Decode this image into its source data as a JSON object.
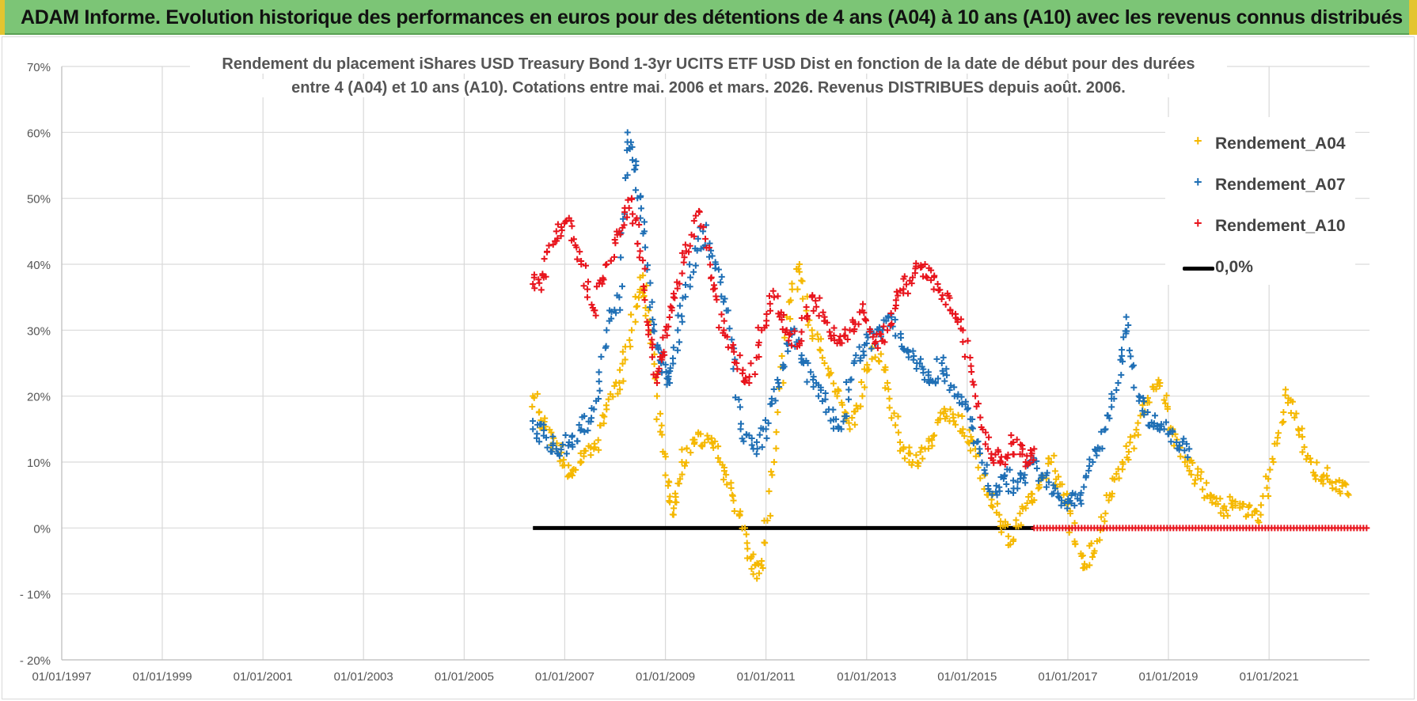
{
  "header": {
    "title": "ADAM Informe. Evolution historique des performances en euros pour des détentions de 4 ans (A04) à 10 ans (A10) avec les revenus connus distribués"
  },
  "chart_data": {
    "type": "scatter",
    "title_line1": "Rendement du placement iShares USD Treasury Bond 1-3yr UCITS ETF USD Dist en fonction de la date de début pour des durées",
    "title_line2": "entre 4 (A04) et 10 ans (A10). Cotations entre mai. 2006 et mars. 2026. Revenus DISTRIBUES depuis août. 2006.",
    "xlabel": "",
    "ylabel": "",
    "xlim": [
      "1997-01-01",
      "2022-12-31"
    ],
    "ylim": [
      -0.2,
      0.7
    ],
    "x_ticks": [
      "01/01/1997",
      "01/01/1999",
      "01/01/2001",
      "01/01/2003",
      "01/01/2005",
      "01/01/2007",
      "01/01/2009",
      "01/01/2011",
      "01/01/2013",
      "01/01/2015",
      "01/01/2017",
      "01/01/2019",
      "01/01/2021"
    ],
    "y_ticks": [
      "- 20%",
      "- 10%",
      "0%",
      "10%",
      "20%",
      "30%",
      "40%",
      "50%",
      "60%",
      "70%"
    ],
    "y_tick_values": [
      -0.2,
      -0.1,
      0,
      0.1,
      0.2,
      0.3,
      0.4,
      0.5,
      0.6,
      0.7
    ],
    "grid": true,
    "legend_position": "top-right",
    "series": [
      {
        "name": "Rendement_A04",
        "color": "#f5b800",
        "marker": "+",
        "x": [
          "2006-05-15",
          "2006-08-01",
          "2006-11-01",
          "2007-02-01",
          "2007-05-01",
          "2007-08-01",
          "2007-11-01",
          "2008-02-01",
          "2008-05-01",
          "2008-07-01",
          "2008-09-01",
          "2008-11-01",
          "2009-01-01",
          "2009-03-01",
          "2009-05-01",
          "2009-08-01",
          "2009-11-01",
          "2010-02-01",
          "2010-05-01",
          "2010-08-01",
          "2010-10-01",
          "2010-12-01",
          "2011-03-01",
          "2011-06-01",
          "2011-09-01",
          "2011-12-01",
          "2012-03-01",
          "2012-06-01",
          "2012-09-01",
          "2012-12-01",
          "2013-03-01",
          "2013-06-01",
          "2013-09-01",
          "2013-12-01",
          "2014-03-01",
          "2014-06-01",
          "2014-09-01",
          "2014-12-01",
          "2015-03-01",
          "2015-06-01",
          "2015-09-01",
          "2015-12-01",
          "2016-03-01",
          "2016-06-01",
          "2016-09-01",
          "2016-12-01",
          "2017-02-01",
          "2017-05-01",
          "2017-08-01",
          "2017-11-01",
          "2018-02-01",
          "2018-05-01",
          "2018-08-01",
          "2018-11-01",
          "2019-02-01",
          "2019-05-01",
          "2019-08-01",
          "2019-11-01",
          "2020-02-01",
          "2020-05-01",
          "2020-08-01",
          "2020-11-01",
          "2021-02-01",
          "2021-05-01",
          "2021-08-01",
          "2021-11-01",
          "2022-02-01",
          "2022-05-01",
          "2022-08-01"
        ],
        "y": [
          0.2,
          0.15,
          0.12,
          0.08,
          0.1,
          0.12,
          0.18,
          0.22,
          0.3,
          0.38,
          0.33,
          0.2,
          0.08,
          0.02,
          0.1,
          0.13,
          0.14,
          0.1,
          0.05,
          0.0,
          -0.07,
          -0.05,
          0.1,
          0.32,
          0.4,
          0.3,
          0.25,
          0.2,
          0.15,
          0.2,
          0.28,
          0.22,
          0.13,
          0.1,
          0.12,
          0.16,
          0.18,
          0.15,
          0.12,
          0.05,
          0.01,
          -0.02,
          0.03,
          0.06,
          0.1,
          0.05,
          0.0,
          -0.06,
          -0.02,
          0.05,
          0.1,
          0.14,
          0.19,
          0.22,
          0.15,
          0.1,
          0.08,
          0.05,
          0.03,
          0.04,
          0.02,
          0.02,
          0.1,
          0.21,
          0.15,
          0.1,
          0.08,
          0.07,
          0.05
        ]
      },
      {
        "name": "Rendement_A07",
        "color": "#1f6fb5",
        "marker": "+",
        "x": [
          "2006-05-15",
          "2006-08-01",
          "2006-11-01",
          "2007-02-01",
          "2007-05-01",
          "2007-08-01",
          "2007-11-01",
          "2008-02-01",
          "2008-04-01",
          "2008-06-01",
          "2008-08-01",
          "2008-10-01",
          "2008-12-01",
          "2009-02-01",
          "2009-04-01",
          "2009-07-01",
          "2009-10-01",
          "2010-01-01",
          "2010-04-01",
          "2010-07-01",
          "2010-10-01",
          "2011-01-01",
          "2011-04-01",
          "2011-07-01",
          "2011-10-01",
          "2012-01-01",
          "2012-04-01",
          "2012-07-01",
          "2012-10-01",
          "2013-01-01",
          "2013-04-01",
          "2013-07-01",
          "2013-10-01",
          "2014-01-01",
          "2014-04-01",
          "2014-07-01",
          "2014-10-01",
          "2015-01-01",
          "2015-04-01",
          "2015-07-01",
          "2015-10-01",
          "2016-01-01",
          "2016-04-01",
          "2016-07-01",
          "2016-10-01",
          "2017-01-01",
          "2017-04-01",
          "2017-07-01",
          "2017-10-01",
          "2018-01-01",
          "2018-03-01",
          "2018-06-01",
          "2018-09-01",
          "2018-12-01",
          "2019-03-01",
          "2019-06-01"
        ],
        "y": [
          0.15,
          0.14,
          0.12,
          0.13,
          0.15,
          0.18,
          0.3,
          0.35,
          0.6,
          0.55,
          0.45,
          0.3,
          0.25,
          0.22,
          0.3,
          0.38,
          0.45,
          0.4,
          0.33,
          0.15,
          0.12,
          0.15,
          0.22,
          0.3,
          0.25,
          0.22,
          0.18,
          0.15,
          0.25,
          0.28,
          0.3,
          0.32,
          0.27,
          0.25,
          0.22,
          0.25,
          0.2,
          0.18,
          0.12,
          0.05,
          0.08,
          0.06,
          0.1,
          0.08,
          0.06,
          0.04,
          0.05,
          0.1,
          0.15,
          0.22,
          0.32,
          0.2,
          0.16,
          0.15,
          0.13,
          0.12
        ]
      },
      {
        "name": "Rendement_A10",
        "color": "#e8141c",
        "marker": "+",
        "x": [
          "2006-05-15",
          "2006-08-01",
          "2006-11-01",
          "2007-02-01",
          "2007-05-01",
          "2007-08-01",
          "2007-11-01",
          "2008-02-01",
          "2008-05-01",
          "2008-07-01",
          "2008-09-01",
          "2008-11-01",
          "2009-01-01",
          "2009-03-01",
          "2009-06-01",
          "2009-09-01",
          "2009-12-01",
          "2010-03-01",
          "2010-06-01",
          "2010-09-01",
          "2010-12-01",
          "2011-03-01",
          "2011-06-01",
          "2011-09-01",
          "2011-12-01",
          "2012-03-01",
          "2012-06-01",
          "2012-09-01",
          "2012-12-01",
          "2013-03-01",
          "2013-06-01",
          "2013-09-01",
          "2013-12-01",
          "2014-03-01",
          "2014-06-01",
          "2014-09-01",
          "2014-12-01",
          "2015-03-01",
          "2015-06-01",
          "2015-09-01",
          "2015-12-01",
          "2016-03-01",
          "2016-05-01"
        ],
        "y": [
          0.37,
          0.38,
          0.45,
          0.47,
          0.4,
          0.33,
          0.4,
          0.45,
          0.5,
          0.42,
          0.3,
          0.22,
          0.3,
          0.35,
          0.42,
          0.48,
          0.38,
          0.3,
          0.25,
          0.22,
          0.3,
          0.35,
          0.3,
          0.28,
          0.35,
          0.32,
          0.28,
          0.3,
          0.33,
          0.28,
          0.3,
          0.36,
          0.38,
          0.4,
          0.37,
          0.33,
          0.3,
          0.2,
          0.12,
          0.1,
          0.13,
          0.1,
          0.12
        ]
      },
      {
        "name": "0,0%",
        "color": "#000000",
        "marker": "line",
        "x": [
          "2006-05-15",
          "2016-05-01"
        ],
        "y": [
          0,
          0
        ]
      }
    ],
    "zero_markers": {
      "color": "#e8141c",
      "x_start": "2016-05-01",
      "x_end": "2022-12-31",
      "y": 0
    }
  }
}
